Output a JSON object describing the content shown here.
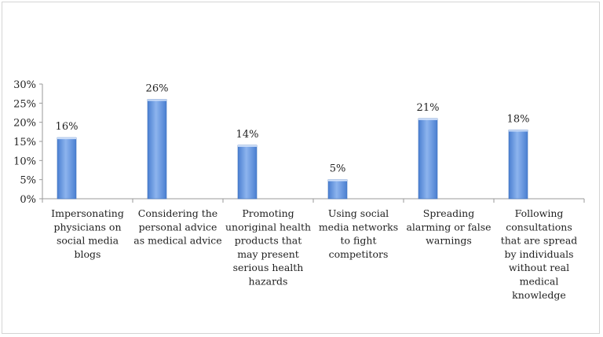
{
  "chart_data": {
    "type": "bar",
    "title": "",
    "xlabel": "",
    "ylabel": "",
    "ylim": [
      0,
      30
    ],
    "y_ticks": [
      "0%",
      "5%",
      "10%",
      "15%",
      "20%",
      "25%",
      "30%"
    ],
    "legend": "none",
    "grid": false,
    "categories": [
      "Impersonating physicians on social media blogs",
      "Considering the personal advice as medical advice",
      "Promoting unoriginal health products that may present serious health hazards",
      "Using social media networks to fight competitors",
      "Spreading alarming or false warnings",
      "Following consultations that are spread by individuals without real medical knowledge"
    ],
    "category_lines": [
      [
        "Impersonating",
        "physicians on",
        "social media",
        "blogs"
      ],
      [
        "Considering the",
        "personal advice",
        "as medical advice"
      ],
      [
        "Promoting",
        "unoriginal health",
        "products that",
        "may present",
        "serious health",
        "hazards"
      ],
      [
        "Using social",
        "media networks",
        "to fight",
        "competitors"
      ],
      [
        "Spreading",
        "alarming or false",
        "warnings"
      ],
      [
        "Following",
        "consultations",
        "that are spread",
        "by individuals",
        "without real",
        "medical",
        "knowledge"
      ]
    ],
    "values": [
      16,
      26,
      14,
      5,
      21,
      18
    ],
    "data_labels": [
      "16%",
      "26%",
      "14%",
      "5%",
      "21%",
      "18%"
    ],
    "bar_color": "#5b8fd9"
  }
}
